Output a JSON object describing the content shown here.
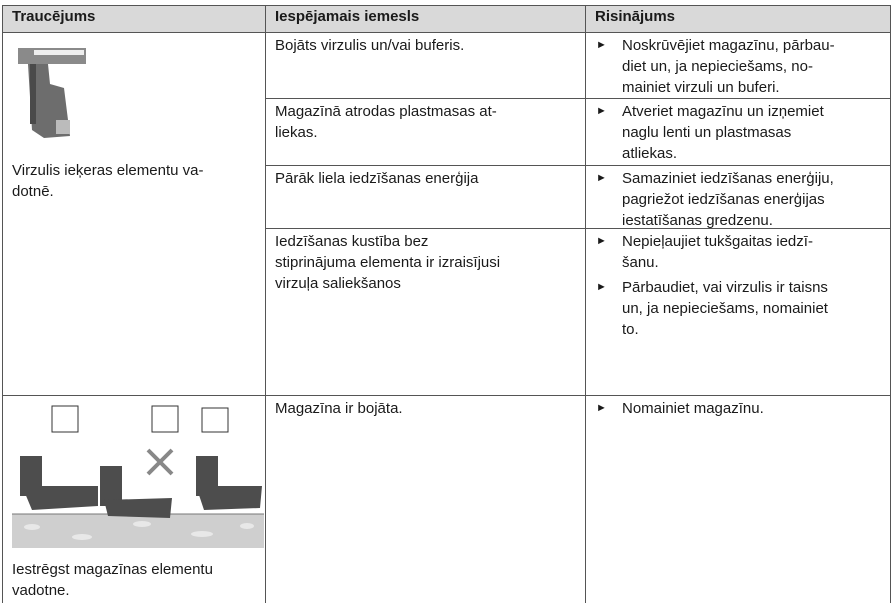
{
  "header": [
    "Traucējums",
    "Iespējamais iemesls",
    "Risinājums"
  ],
  "groups": [
    {
      "problem": [
        "Virzulis ieķeras elementu va-",
        "dotnē."
      ],
      "causes": [
        {
          "cause": [
            "Bojāts virzulis un/vai buferis."
          ],
          "solutions": [
            [
              "Noskrūvējiet magazīnu, pārbau-",
              "diet un, ja nepieciešams, no-",
              "mainiet virzuli un buferi."
            ]
          ]
        },
        {
          "cause": [
            "Magazīnā atrodas plastmasas at-",
            "liekas."
          ],
          "solutions": [
            [
              "Atveriet magazīnu un izņemiet",
              "naglu lenti un plastmasas",
              "atliekas."
            ]
          ]
        },
        {
          "cause": [
            "Pārāk liela iedzīšanas enerģija"
          ],
          "solutions": [
            [
              "Samaziniet iedzīšanas enerģiju,",
              "pagriežot iedzīšanas enerģijas",
              "iestatīšanas gredzenu."
            ]
          ]
        },
        {
          "cause": [
            "Iedzīšanas kustība bez",
            "stiprinājuma elementa ir izraisījusi",
            "virzuļa saliekšanos"
          ],
          "solutions": [
            [
              "Nepieļaujiet tukšgaitas iedzī-",
              "šanu."
            ],
            [
              "Pārbaudiet, vai virzulis ir taisns",
              "un, ja nepieciešams, nomainiet",
              "to."
            ]
          ]
        }
      ]
    },
    {
      "problem": [
        "Iestrēgst magazīnas elementu",
        "vadotne."
      ],
      "causes": [
        {
          "cause": [
            "Magazīna ir bojāta."
          ],
          "solutions": [
            [
              "Nomainiet magazīnu."
            ]
          ]
        }
      ]
    }
  ]
}
